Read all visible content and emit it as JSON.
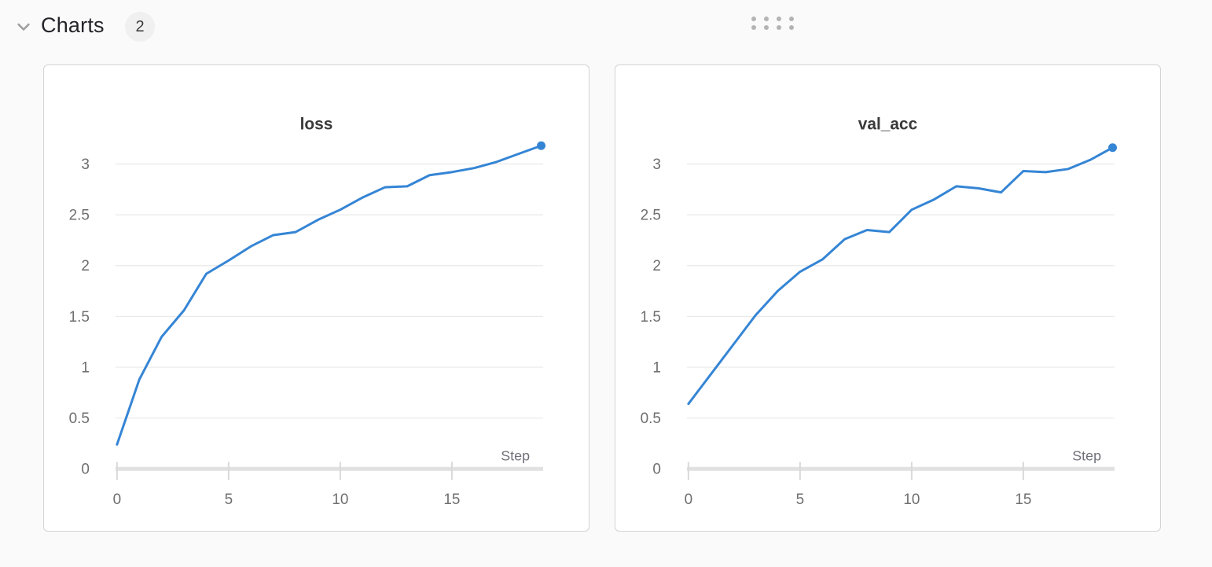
{
  "header": {
    "title": "Charts",
    "count": "2",
    "chevron_icon": "chevron-down",
    "drag_handle_icon": "drag-dots-grid"
  },
  "colors": {
    "page_bg": "#fafafa",
    "card_bg": "#ffffff",
    "card_border": "#d4d4d4",
    "line": "#3585d5",
    "grid": "#e9e9e9",
    "axis": "#e1e1e1",
    "tick": "#d9d9d9",
    "tick_label": "#6e6e6e",
    "axis_title": "#70707a",
    "chart_title": "#3a3a3a",
    "header_text": "#24242a",
    "badge_bg": "#f0f0f0",
    "drag_dots": "#b4b4b4",
    "chevron": "#a0a0a0"
  },
  "chart_data": [
    {
      "type": "line",
      "title": "loss",
      "xlabel": "Step",
      "ylabel": "",
      "x": [
        0,
        1,
        2,
        3,
        4,
        5,
        6,
        7,
        8,
        9,
        10,
        11,
        12,
        13,
        14,
        15,
        16,
        17,
        18,
        19
      ],
      "values": [
        0.24,
        0.88,
        1.3,
        1.56,
        1.92,
        2.05,
        2.19,
        2.3,
        2.33,
        2.45,
        2.55,
        2.67,
        2.77,
        2.78,
        2.89,
        2.92,
        2.96,
        3.02,
        3.1,
        3.18
      ],
      "xticks": [
        0,
        5,
        10,
        15
      ],
      "yticks": [
        0,
        0.5,
        1,
        1.5,
        2,
        2.5,
        3
      ],
      "xlim": [
        0,
        19
      ],
      "ylim": [
        0,
        3.3
      ],
      "grid": true,
      "legend": "none",
      "endpoint_marker": true
    },
    {
      "type": "line",
      "title": "val_acc",
      "xlabel": "Step",
      "ylabel": "",
      "x": [
        0,
        1,
        2,
        3,
        4,
        5,
        6,
        7,
        8,
        9,
        10,
        11,
        12,
        13,
        14,
        15,
        16,
        17,
        18,
        19
      ],
      "values": [
        0.64,
        0.93,
        1.22,
        1.51,
        1.75,
        1.94,
        2.06,
        2.26,
        2.35,
        2.33,
        2.55,
        2.65,
        2.78,
        2.76,
        2.72,
        2.93,
        2.92,
        2.95,
        3.04,
        3.16
      ],
      "xticks": [
        0,
        5,
        10,
        15
      ],
      "yticks": [
        0,
        0.5,
        1,
        1.5,
        2,
        2.5,
        3
      ],
      "xlim": [
        0,
        19
      ],
      "ylim": [
        0,
        3.3
      ],
      "grid": true,
      "legend": "none",
      "endpoint_marker": true
    }
  ]
}
